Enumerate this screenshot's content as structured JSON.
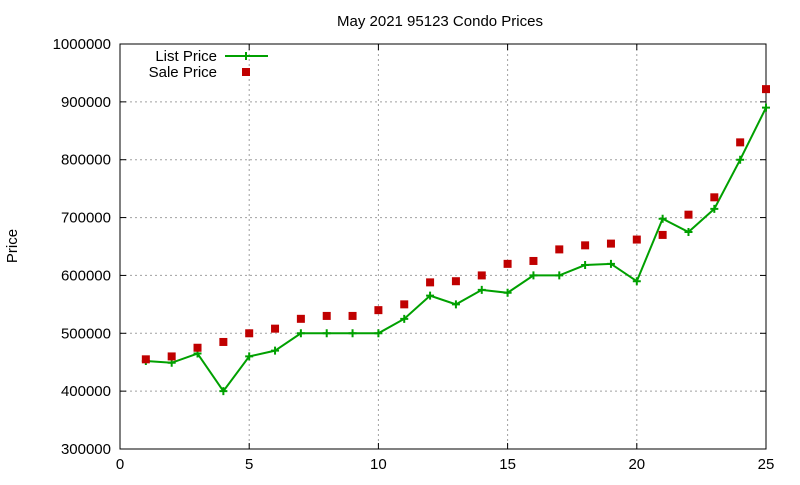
{
  "chart_data": {
    "type": "line",
    "title": "May 2021 95123 Condo Prices",
    "xlabel": "",
    "ylabel": "Price",
    "xlim": [
      0,
      25
    ],
    "ylim": [
      300000,
      1000000
    ],
    "x_ticks": [
      0,
      5,
      10,
      15,
      20,
      25
    ],
    "y_ticks": [
      300000,
      400000,
      500000,
      600000,
      700000,
      800000,
      900000,
      1000000
    ],
    "grid": true,
    "legend_position": "top-left",
    "series": [
      {
        "name": "List Price",
        "type": "line",
        "color": "#00a000",
        "marker": "plus",
        "x": [
          1,
          2,
          3,
          4,
          5,
          6,
          7,
          8,
          9,
          10,
          11,
          12,
          13,
          14,
          15,
          16,
          17,
          18,
          19,
          20,
          21,
          22,
          23,
          24,
          25
        ],
        "values": [
          452000,
          449000,
          465000,
          400000,
          460000,
          470000,
          500000,
          500000,
          500000,
          500000,
          525000,
          565000,
          550000,
          575000,
          570000,
          600000,
          600000,
          618000,
          620000,
          590000,
          698000,
          675000,
          715000,
          800000,
          890000
        ]
      },
      {
        "name": "Sale Price",
        "type": "scatter",
        "color": "#c00000",
        "marker": "square",
        "x": [
          1,
          2,
          3,
          4,
          5,
          6,
          7,
          8,
          9,
          10,
          11,
          12,
          13,
          14,
          15,
          16,
          17,
          18,
          19,
          20,
          21,
          22,
          23,
          24,
          25
        ],
        "values": [
          455000,
          460000,
          475000,
          485000,
          500000,
          508000,
          525000,
          530000,
          530000,
          540000,
          550000,
          588000,
          590000,
          600000,
          620000,
          625000,
          645000,
          652000,
          655000,
          662000,
          670000,
          705000,
          735000,
          830000,
          922000
        ]
      }
    ]
  }
}
